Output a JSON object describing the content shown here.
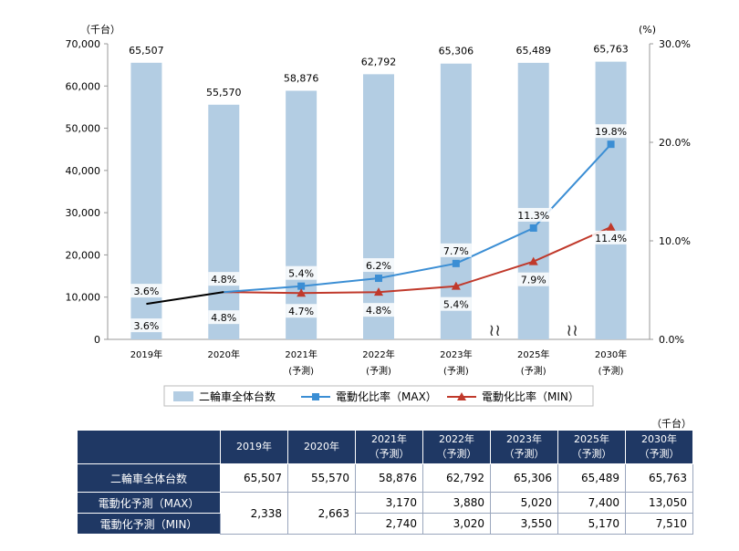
{
  "chart_data": {
    "type": "bar",
    "categories": [
      "2019年",
      "2020年",
      "2021年",
      "2022年",
      "2023年",
      "2025年",
      "2030年"
    ],
    "category_sub": [
      "",
      "",
      "(予測)",
      "(予測)",
      "(予測)",
      "(予測)",
      "(予測)"
    ],
    "left_unit": "（千台）",
    "right_unit": "(%)",
    "ylim": [
      0,
      70000
    ],
    "y_ticks": [
      "0",
      "10,000",
      "20,000",
      "30,000",
      "40,000",
      "50,000",
      "60,000",
      "70,000"
    ],
    "y2lim": [
      0,
      30
    ],
    "y2_ticks": [
      "0.0%",
      "10.0%",
      "20.0%",
      "30.0%"
    ],
    "bar_series": {
      "name": "二輪車全体台数",
      "values": [
        65507,
        55570,
        58876,
        62792,
        65306,
        65489,
        65763
      ],
      "labels": [
        "65,507",
        "55,570",
        "58,876",
        "62,792",
        "65,306",
        "65,489",
        "65,763"
      ],
      "color": "#b3cde3"
    },
    "line_series": [
      {
        "name": "電動化比率（MAX）",
        "values": [
          3.6,
          4.8,
          5.4,
          6.2,
          7.7,
          11.3,
          19.8
        ],
        "labels": [
          "3.6%",
          "4.8%",
          "5.4%",
          "6.2%",
          "7.7%",
          "11.3%",
          "19.8%"
        ],
        "color": "#3b8ed4"
      },
      {
        "name": "電動化比率（MIN）",
        "values": [
          3.6,
          4.8,
          4.7,
          4.8,
          5.4,
          7.9,
          11.4
        ],
        "labels": [
          "3.6%",
          "4.8%",
          "4.7%",
          "4.8%",
          "5.4%",
          "7.9%",
          "11.4%"
        ],
        "color": "#c0392b"
      }
    ],
    "actual_line_color": "#000000",
    "break_marks": [
      "≀≀",
      "≀≀"
    ]
  },
  "table": {
    "unit": "（千台）",
    "headers": [
      {
        "year": "2019年",
        "sub": ""
      },
      {
        "year": "2020年",
        "sub": ""
      },
      {
        "year": "2021年",
        "sub": "（予測）"
      },
      {
        "year": "2022年",
        "sub": "（予測）"
      },
      {
        "year": "2023年",
        "sub": "（予測）"
      },
      {
        "year": "2025年",
        "sub": "（予測）"
      },
      {
        "year": "2030年",
        "sub": "（予測）"
      }
    ],
    "row_total": {
      "label": "二輪車全体台数",
      "values": [
        "65,507",
        "55,570",
        "58,876",
        "62,792",
        "65,306",
        "65,489",
        "65,763"
      ]
    },
    "row_max": {
      "label": "電動化予測（MAX）",
      "values": [
        "3,170",
        "3,880",
        "5,020",
        "7,400",
        "13,050"
      ]
    },
    "row_min": {
      "label": "電動化予測（MIN）",
      "values": [
        "2,740",
        "3,020",
        "3,550",
        "5,170",
        "7,510"
      ]
    },
    "shared": [
      "2,338",
      "2,663"
    ]
  }
}
